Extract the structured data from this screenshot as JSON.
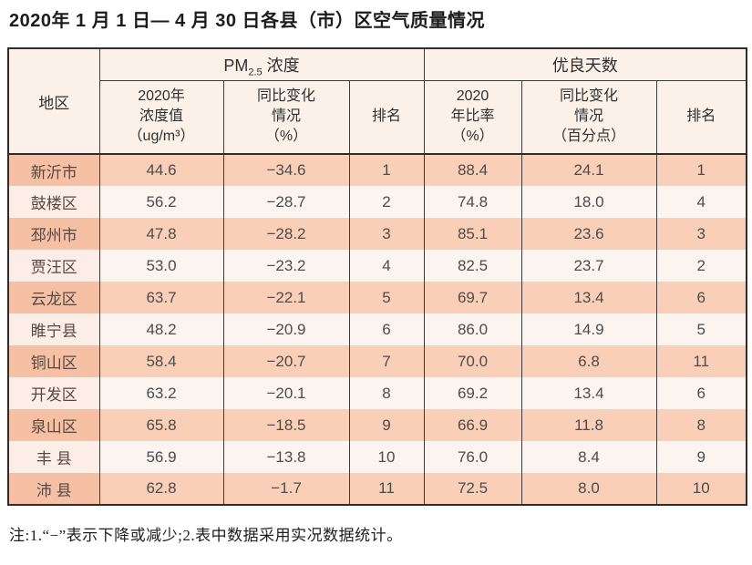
{
  "title": "2020年 1 月 1 日— 4 月 30 日各县（市）区空气质量情况",
  "table": {
    "corner_header": "地区",
    "pm_group": {
      "prefix": "PM",
      "sub": "2.5",
      "suffix": " 浓度"
    },
    "good_group_label": "优良天数",
    "subheaders": [
      "2020年\n浓度值\n（ug/m³）",
      "同比变化\n情况\n（%）",
      "排名",
      "2020\n年比率\n（%）",
      "同比变化\n情况\n（百分点）",
      "排名"
    ],
    "rows": [
      {
        "region": "新沂市",
        "pm_value": "44.6",
        "pm_change": "−34.6",
        "pm_rank": "1",
        "good_rate": "88.4",
        "good_change": "24.1",
        "good_rank": "1"
      },
      {
        "region": "鼓楼区",
        "pm_value": "56.2",
        "pm_change": "−28.7",
        "pm_rank": "2",
        "good_rate": "74.8",
        "good_change": "18.0",
        "good_rank": "4"
      },
      {
        "region": "邳州市",
        "pm_value": "47.8",
        "pm_change": "−28.2",
        "pm_rank": "3",
        "good_rate": "85.1",
        "good_change": "23.6",
        "good_rank": "3"
      },
      {
        "region": "贾汪区",
        "pm_value": "53.0",
        "pm_change": "−23.2",
        "pm_rank": "4",
        "good_rate": "82.5",
        "good_change": "23.7",
        "good_rank": "2"
      },
      {
        "region": "云龙区",
        "pm_value": "63.7",
        "pm_change": "−22.1",
        "pm_rank": "5",
        "good_rate": "69.7",
        "good_change": "13.4",
        "good_rank": "6"
      },
      {
        "region": "睢宁县",
        "pm_value": "48.2",
        "pm_change": "−20.9",
        "pm_rank": "6",
        "good_rate": "86.0",
        "good_change": "14.9",
        "good_rank": "5"
      },
      {
        "region": "铜山区",
        "pm_value": "58.4",
        "pm_change": "−20.7",
        "pm_rank": "7",
        "good_rate": "70.0",
        "good_change": "6.8",
        "good_rank": "11"
      },
      {
        "region": "开发区",
        "pm_value": "63.2",
        "pm_change": "−20.1",
        "pm_rank": "8",
        "good_rate": "69.2",
        "good_change": "13.4",
        "good_rank": "6"
      },
      {
        "region": "泉山区",
        "pm_value": "65.8",
        "pm_change": "−18.5",
        "pm_rank": "9",
        "good_rate": "66.9",
        "good_change": "11.8",
        "good_rank": "8"
      },
      {
        "region": "丰 县",
        "pm_value": "56.9",
        "pm_change": "−13.8",
        "pm_rank": "10",
        "good_rate": "76.0",
        "good_change": "8.4",
        "good_rank": "9"
      },
      {
        "region": "沛 县",
        "pm_value": "62.8",
        "pm_change": "−1.7",
        "pm_rank": "11",
        "good_rate": "72.5",
        "good_change": "8.0",
        "good_rank": "10"
      }
    ]
  },
  "note": "注:1.“−”表示下降或减少;2.表中数据采用实况数据统计。",
  "colors": {
    "row_odd": "#f9cfb8",
    "row_odd_region": "#f5c0a4",
    "row_even": "#fcf4ee",
    "header_bg": "#fcf1e9",
    "border": "#2d2d2d"
  }
}
